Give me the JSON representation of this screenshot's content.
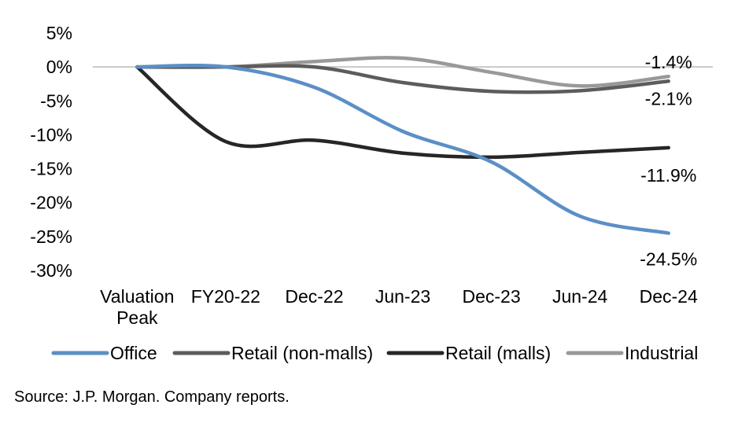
{
  "chart_data": {
    "type": "line",
    "categories": [
      "Valuation Peak",
      "FY20-22",
      "Dec-22",
      "Jun-23",
      "Dec-23",
      "Jun-24",
      "Dec-24"
    ],
    "ylim": [
      -30,
      5
    ],
    "yticks": [
      5,
      0,
      -5,
      -10,
      -15,
      -20,
      -25,
      -30
    ],
    "ytick_labels": [
      "5%",
      "0%",
      "-5%",
      "-10%",
      "-15%",
      "-20%",
      "-25%",
      "-30%"
    ],
    "series": [
      {
        "name": "Office",
        "color": "#5b8fc6",
        "values": [
          0,
          0,
          -3,
          -9.5,
          -14,
          -22,
          -24.5
        ],
        "end_label": "-24.5%"
      },
      {
        "name": "Retail (non-malls)",
        "color": "#5c5c5c",
        "values": [
          0,
          0,
          0,
          -2.3,
          -3.6,
          -3.5,
          -2.1
        ],
        "end_label": "-2.1%"
      },
      {
        "name": "Retail (malls)",
        "color": "#262626",
        "values": [
          0,
          -11,
          -10.8,
          -12.7,
          -13.3,
          -12.6,
          -11.9
        ],
        "end_label": "-11.9%"
      },
      {
        "name": "Industrial",
        "color": "#999999",
        "values": [
          0,
          0,
          0.8,
          1.3,
          -0.8,
          -2.8,
          -1.4
        ],
        "end_label": "-1.4%"
      }
    ],
    "legend_position": "bottom",
    "grid": false
  },
  "source_text": "Source: J.P. Morgan. Company reports."
}
